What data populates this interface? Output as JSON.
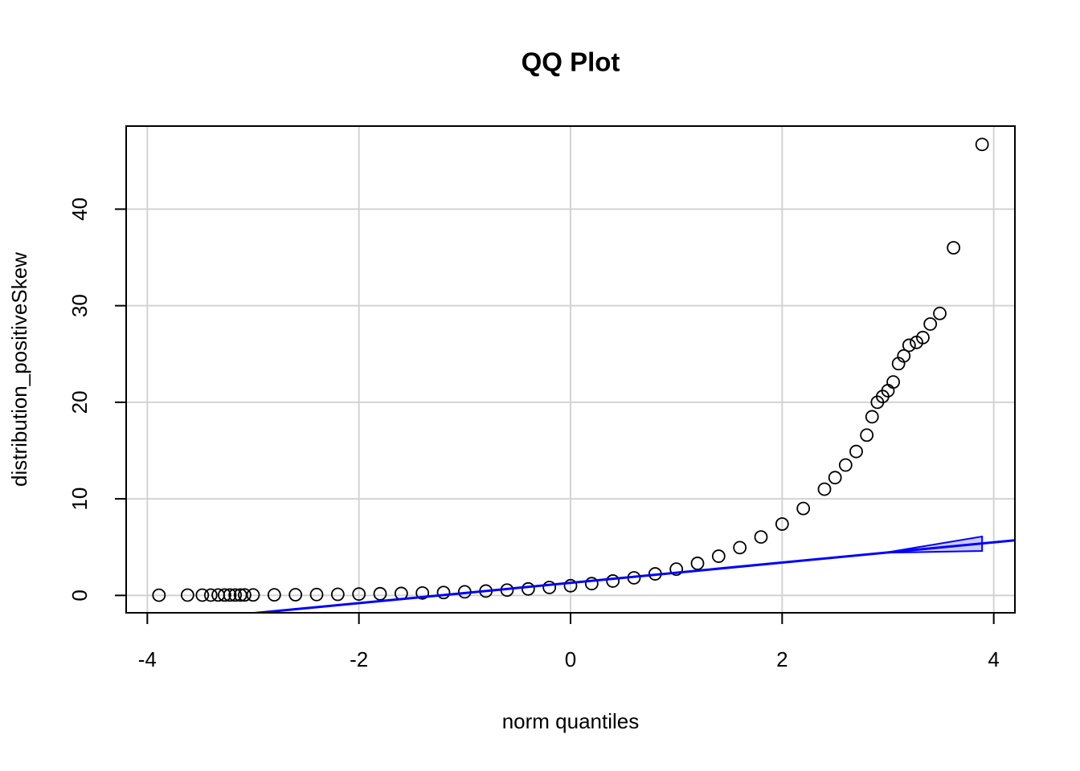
{
  "chart_data": {
    "type": "scatter",
    "title": "QQ Plot",
    "x_label": "norm quantiles",
    "y_label": "distribution_positiveSkew",
    "x": [
      -3.89,
      -3.62,
      -3.48,
      -3.4,
      -3.33,
      -3.27,
      -3.22,
      -3.17,
      -3.12,
      -3.08,
      -3.0,
      -2.8,
      -2.6,
      -2.4,
      -2.2,
      -2.0,
      -1.8,
      -1.6,
      -1.4,
      -1.2,
      -1.0,
      -0.8,
      -0.6,
      -0.4,
      -0.2,
      0,
      0.2,
      0.4,
      0.6,
      0.8,
      1.0,
      1.2,
      1.4,
      1.6,
      1.8,
      2.0,
      2.2,
      2.4,
      2.5,
      2.6,
      2.7,
      2.8,
      2.85,
      2.9,
      2.95,
      3.0,
      3.05,
      3.1,
      3.15,
      3.2,
      3.27,
      3.33,
      3.4,
      3.49,
      3.62,
      3.89
    ],
    "values": [
      0.02,
      0.03,
      0.03,
      0.03,
      0.04,
      0.04,
      0.04,
      0.04,
      0.04,
      0.05,
      0.05,
      0.06,
      0.07,
      0.09,
      0.11,
      0.14,
      0.17,
      0.2,
      0.25,
      0.3,
      0.37,
      0.45,
      0.55,
      0.67,
      0.82,
      1.0,
      1.22,
      1.49,
      1.82,
      2.23,
      2.72,
      3.32,
      4.06,
      4.95,
      6.05,
      7.39,
      9.0,
      11.0,
      12.2,
      13.5,
      14.9,
      16.6,
      18.5,
      20.0,
      20.6,
      21.2,
      22.1,
      24.0,
      24.8,
      25.9,
      26.2,
      26.7,
      28.1,
      29.2,
      36.0,
      46.7
    ],
    "color": "#000000",
    "reference_line": {
      "intercept": 1.3,
      "slope": 1.05,
      "color": "#0000ff"
    },
    "band": {
      "x": [
        2.97,
        3.89
      ],
      "lower": [
        4.42,
        4.6
      ],
      "upper": [
        4.42,
        6.1
      ],
      "color": "#0000ff"
    },
    "xlim": [
      -4.2,
      4.2
    ],
    "ylim": [
      -1.8,
      48.6
    ],
    "xticks": [
      -4,
      -2,
      0,
      2,
      4
    ],
    "yticks": [
      0,
      10,
      20,
      30,
      40
    ],
    "grid": true
  }
}
